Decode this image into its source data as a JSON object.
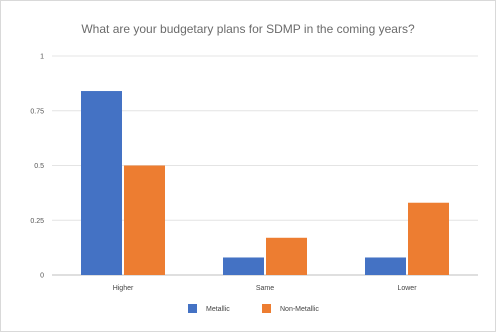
{
  "chart_data": {
    "type": "bar",
    "title": "What are your budgetary plans for SDMP in the coming years?",
    "categories": [
      "Higher",
      "Same",
      "Lower"
    ],
    "series": [
      {
        "name": "Metallic",
        "values": [
          0.84,
          0.08,
          0.08
        ]
      },
      {
        "name": "Non-Metallic",
        "values": [
          0.5,
          0.17,
          0.33
        ]
      }
    ],
    "yticks": [
      "0",
      "0.25",
      "0.5",
      "0.75",
      "1"
    ],
    "ylim": [
      0,
      1
    ],
    "grid": true,
    "legend": "bottom",
    "colors": {
      "Metallic": "#4472c4",
      "Non-Metallic": "#ed7d31"
    }
  }
}
